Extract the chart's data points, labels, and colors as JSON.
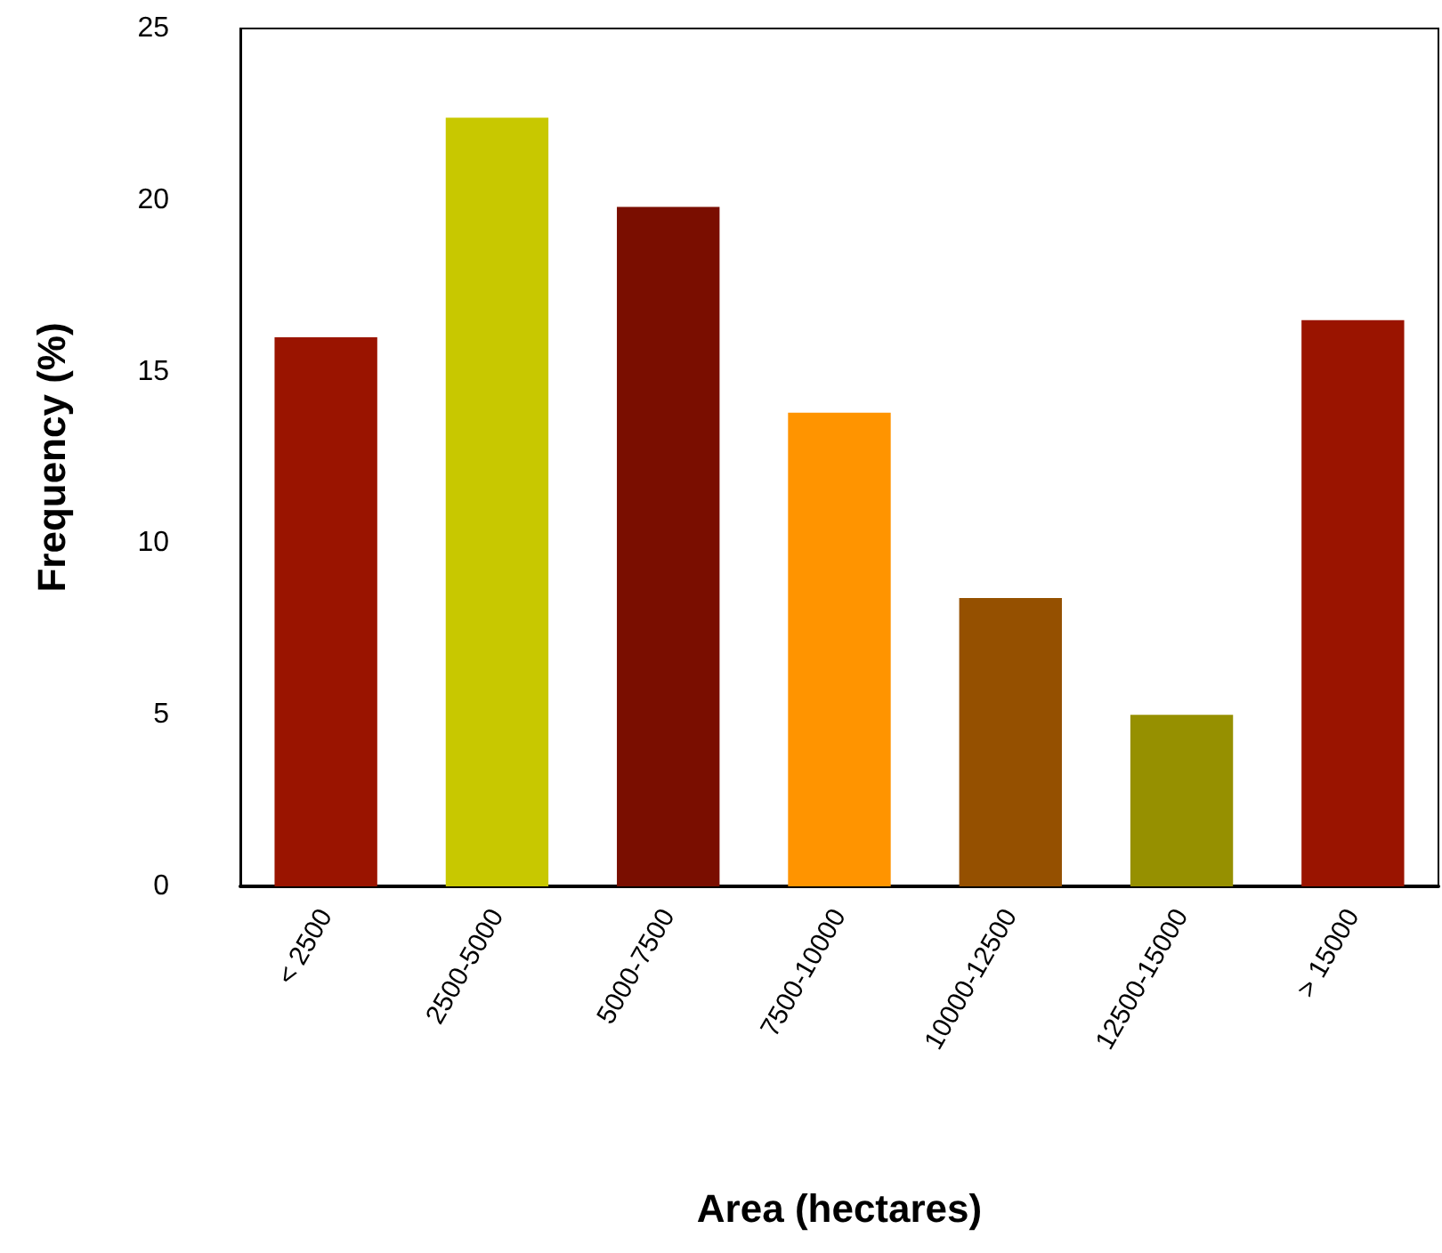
{
  "chart_data": {
    "type": "bar",
    "xlabel": "Area (hectares)",
    "ylabel": "Frequency (%)",
    "categories": [
      "< 2500",
      "2500-5000",
      "5000-7500",
      "7500-10000",
      "10000-12500",
      "12500-15000",
      "> 15000"
    ],
    "values": [
      16.0,
      22.4,
      19.8,
      13.8,
      8.4,
      5.0,
      16.5
    ],
    "colors": [
      "#9a1400",
      "#c8c800",
      "#7a0e00",
      "#ff9400",
      "#955000",
      "#969000",
      "#9a1400"
    ],
    "ylim": [
      0,
      25
    ],
    "yticks": [
      0,
      5,
      10,
      15,
      20,
      25
    ],
    "grid": false
  }
}
